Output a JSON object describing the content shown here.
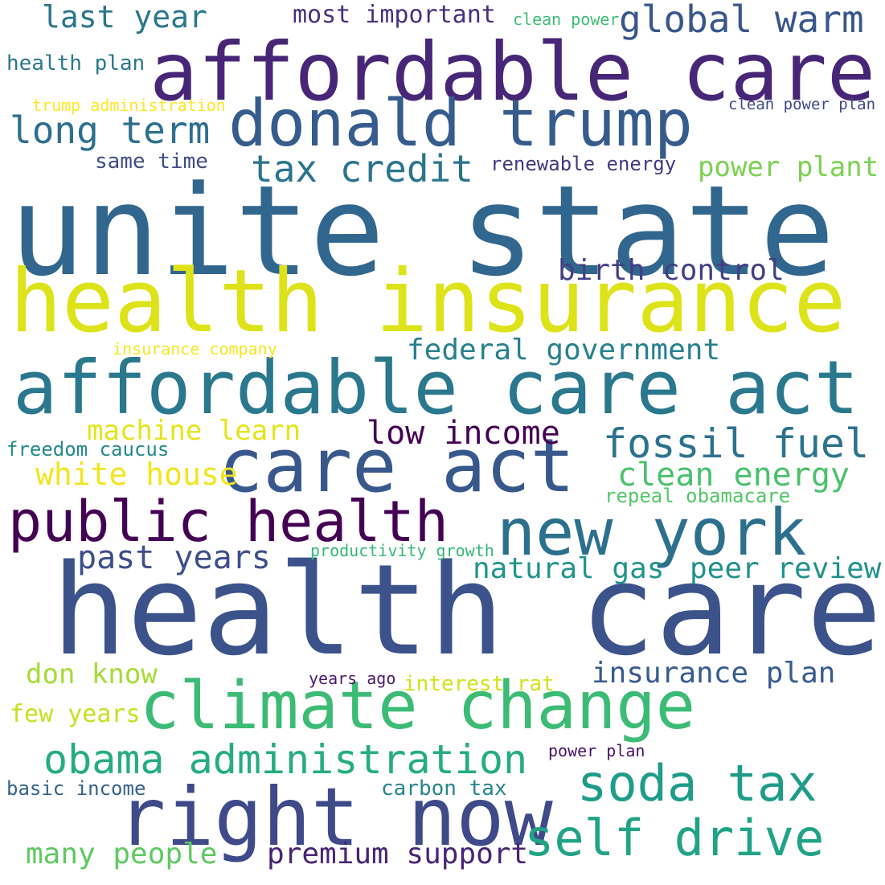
{
  "words": [
    {
      "text": "health care",
      "color": "#3b528b"
    },
    {
      "text": "unite state",
      "color": "#31668e"
    },
    {
      "text": "health insurance",
      "color": "#dde318"
    },
    {
      "text": "affordable care act",
      "color": "#2a788e"
    },
    {
      "text": "affordable care",
      "color": "#482677"
    },
    {
      "text": "care act",
      "color": "#38588c"
    },
    {
      "text": "donald trump",
      "color": "#365c8d"
    },
    {
      "text": "climate change",
      "color": "#3cbb75"
    },
    {
      "text": "right now",
      "color": "#3e4a89"
    },
    {
      "text": "new york",
      "color": "#2d708e"
    },
    {
      "text": "public health",
      "color": "#440154"
    },
    {
      "text": "self drive",
      "color": "#20a386"
    },
    {
      "text": "soda tax",
      "color": "#1e9c89"
    },
    {
      "text": "obama administration",
      "color": "#25ac82"
    },
    {
      "text": "fossil fuel",
      "color": "#2c728e"
    },
    {
      "text": "global warm",
      "color": "#39568c"
    },
    {
      "text": "tax credit",
      "color": "#2b748e"
    },
    {
      "text": "long term",
      "color": "#2e6f8e"
    },
    {
      "text": "low income",
      "color": "#440154"
    },
    {
      "text": "clean energy",
      "color": "#4ac16d"
    },
    {
      "text": "federal government",
      "color": "#27808e"
    },
    {
      "text": "past years",
      "color": "#3d4e8a"
    },
    {
      "text": "birth control",
      "color": "#433e85"
    },
    {
      "text": "power plant",
      "color": "#7ad151"
    },
    {
      "text": "natural gas",
      "color": "#1f958b"
    },
    {
      "text": "peer review",
      "color": "#21918c"
    },
    {
      "text": "last year",
      "color": "#2a768e"
    },
    {
      "text": "insurance plan",
      "color": "#375b8d"
    },
    {
      "text": "machine learn",
      "color": "#e5e419"
    },
    {
      "text": "white house",
      "color": "#f1e51d"
    },
    {
      "text": "many people",
      "color": "#5ec962"
    },
    {
      "text": "premium support",
      "color": "#482475"
    },
    {
      "text": "most important",
      "color": "#472f7d"
    },
    {
      "text": "don know",
      "color": "#a5db36"
    },
    {
      "text": "few years",
      "color": "#c8e020"
    },
    {
      "text": "interest rat",
      "color": "#d2e21b"
    },
    {
      "text": "carbon tax",
      "color": "#25858e"
    },
    {
      "text": "basic income",
      "color": "#33628d"
    },
    {
      "text": "freedom caucus",
      "color": "#23898e"
    },
    {
      "text": "renewable energy",
      "color": "#453781"
    },
    {
      "text": "repeal obamacare",
      "color": "#54c568"
    },
    {
      "text": "health plan",
      "color": "#2a788e"
    },
    {
      "text": "same time",
      "color": "#3e4c8a"
    },
    {
      "text": "productivity growth",
      "color": "#35b779"
    },
    {
      "text": "clean power plan",
      "color": "#3f4788"
    },
    {
      "text": "clean power",
      "color": "#3dbc74"
    },
    {
      "text": "trump administration",
      "color": "#fde725"
    },
    {
      "text": "insurance company",
      "color": "#f6e620"
    },
    {
      "text": "years ago",
      "color": "#481a6c"
    },
    {
      "text": "power plan",
      "color": "#471365"
    }
  ]
}
